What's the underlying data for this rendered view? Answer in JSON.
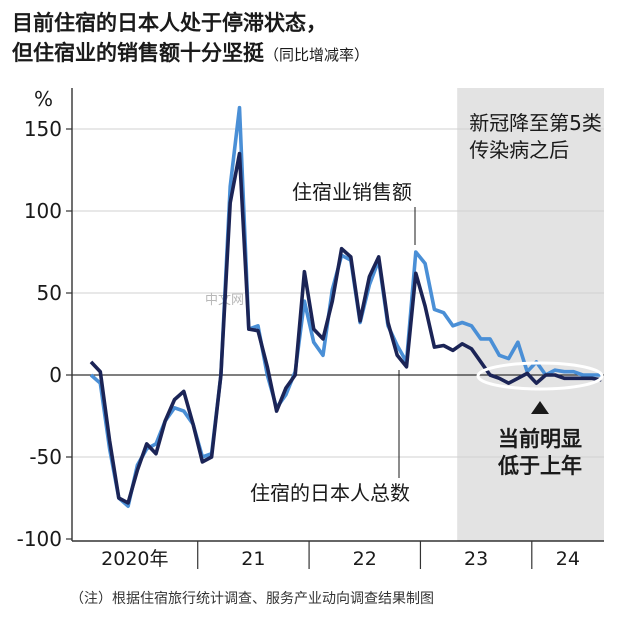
{
  "title_line1": "目前住宿的日本人处于停滞状态，",
  "title_line2": "但住宿业的销售额十分坚挺",
  "title_sub": "（同比增减率）",
  "note": "（注）根据住宿旅行统计调查、服务产业动向调查结果制图",
  "watermark": "中文网",
  "colors": {
    "sales": "#4a8fd6",
    "guests": "#1b2456",
    "shade": "#e3e3e3"
  },
  "chart_data": {
    "type": "line",
    "ylabel": "%",
    "ylim": [
      -100,
      170
    ],
    "yticks": [
      150,
      100,
      50,
      0,
      -50,
      -100
    ],
    "year_labels": [
      "2020年",
      "21",
      "22",
      "23",
      "24"
    ],
    "x_start": "2020-01",
    "x_end": "2024-08",
    "shaded_from": "2023-05",
    "shaded_label_lines": [
      "新冠降至第5类",
      "传染病之后"
    ],
    "annotation_lines": [
      "当前明显",
      "低于上年"
    ],
    "series": [
      {
        "name": "住宿业销售额",
        "color": "#4a8fd6",
        "values": [
          0,
          -5,
          -45,
          -75,
          -80,
          -55,
          -45,
          -42,
          -28,
          -20,
          -22,
          -30,
          -50,
          -48,
          0,
          115,
          163,
          28,
          30,
          0,
          -20,
          -12,
          2,
          45,
          20,
          12,
          52,
          73,
          70,
          32,
          55,
          70,
          30,
          18,
          8,
          75,
          68,
          40,
          38,
          30,
          32,
          30,
          22,
          22,
          12,
          10,
          20,
          2,
          8,
          0,
          3,
          2,
          2,
          0,
          0,
          0
        ]
      },
      {
        "name": "住宿的日本人总数",
        "color": "#1b2456",
        "values": [
          8,
          2,
          -40,
          -75,
          -78,
          -58,
          -42,
          -48,
          -28,
          -15,
          -10,
          -30,
          -53,
          -50,
          0,
          105,
          135,
          28,
          27,
          5,
          -22,
          -8,
          0,
          63,
          28,
          22,
          45,
          77,
          72,
          33,
          60,
          72,
          32,
          12,
          5,
          62,
          42,
          17,
          18,
          15,
          19,
          16,
          8,
          0,
          -2,
          -5,
          -2,
          1,
          -5,
          0,
          0,
          -2,
          -2,
          -2,
          -2,
          -3
        ]
      }
    ]
  }
}
